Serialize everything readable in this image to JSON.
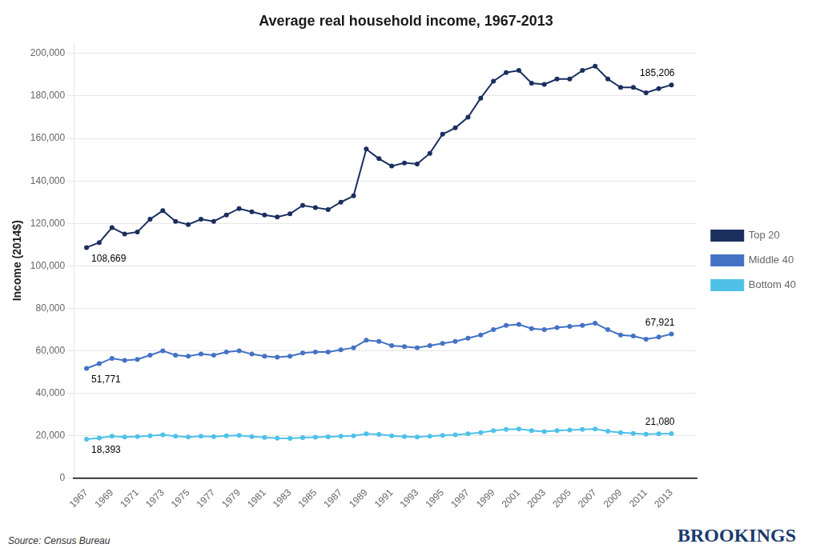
{
  "chart_data": {
    "type": "line",
    "title": "Average real household income, 1967-2013",
    "y_label": "Income (2014$)",
    "x": [
      1967,
      1968,
      1969,
      1970,
      1971,
      1972,
      1973,
      1974,
      1975,
      1976,
      1977,
      1978,
      1979,
      1980,
      1981,
      1982,
      1983,
      1984,
      1985,
      1986,
      1987,
      1988,
      1989,
      1990,
      1991,
      1992,
      1993,
      1994,
      1995,
      1996,
      1997,
      1998,
      1999,
      2000,
      2001,
      2002,
      2003,
      2004,
      2005,
      2006,
      2007,
      2008,
      2009,
      2010,
      2011,
      2012,
      2013
    ],
    "series": [
      {
        "name": "Top 20",
        "color": "#1a2f5e",
        "values": [
          108669,
          111000,
          118000,
          115000,
          116000,
          122000,
          126000,
          121000,
          119500,
          122000,
          121000,
          124000,
          127000,
          125500,
          124000,
          123000,
          124500,
          128500,
          127500,
          126500,
          130000,
          133000,
          155000,
          150500,
          147000,
          148500,
          148000,
          153000,
          162000,
          165000,
          170000,
          179000,
          187000,
          191000,
          192000,
          186000,
          185500,
          188000,
          188000,
          192000,
          194000,
          188000,
          184000,
          184000,
          181500,
          183500,
          185206
        ]
      },
      {
        "name": "Middle 40",
        "color": "#4472c4",
        "values": [
          51771,
          54000,
          56500,
          55500,
          56000,
          58000,
          60000,
          58000,
          57500,
          58500,
          58000,
          59500,
          60000,
          58500,
          57500,
          57000,
          57500,
          59000,
          59500,
          59500,
          60500,
          61500,
          65000,
          64500,
          62500,
          62000,
          61500,
          62500,
          63500,
          64500,
          66000,
          67500,
          70000,
          72000,
          72500,
          70500,
          70000,
          71000,
          71500,
          72000,
          73000,
          70000,
          67500,
          67000,
          65500,
          66500,
          67921
        ]
      },
      {
        "name": "Bottom 40",
        "color": "#4fc1e9",
        "values": [
          18393,
          19000,
          19800,
          19500,
          19700,
          20000,
          20500,
          19800,
          19500,
          19800,
          19700,
          20000,
          20200,
          19700,
          19300,
          18900,
          18800,
          19200,
          19400,
          19600,
          19800,
          20000,
          21000,
          20700,
          20000,
          19700,
          19500,
          19800,
          20200,
          20500,
          21000,
          21500,
          22500,
          23000,
          23200,
          22500,
          22000,
          22500,
          22800,
          23000,
          23200,
          22200,
          21500,
          21200,
          20800,
          21000,
          21080
        ]
      }
    ],
    "xlim": [
      1966,
      2015
    ],
    "xticks": [
      1967,
      1969,
      1971,
      1973,
      1975,
      1977,
      1979,
      1981,
      1983,
      1985,
      1987,
      1989,
      1991,
      1993,
      1995,
      1997,
      1999,
      2001,
      2003,
      2005,
      2007,
      2009,
      2011,
      2013
    ],
    "ylim": [
      0,
      205000
    ],
    "yticks": [
      0,
      {
        "value": 20000,
        "label": "20,000"
      },
      {
        "value": 40000,
        "label": "40,000"
      },
      {
        "value": 60000,
        "label": "60,000"
      },
      {
        "value": 80000,
        "label": "80,000"
      },
      {
        "value": 100000,
        "label": "100,000"
      },
      {
        "value": 120000,
        "label": "120,000"
      },
      {
        "value": 140000,
        "label": "140,000"
      },
      {
        "value": 160000,
        "label": "160,000"
      },
      {
        "value": 180000,
        "label": "180,000"
      },
      {
        "value": 200000,
        "label": "200,000"
      }
    ],
    "grid": true,
    "legend": "right",
    "marker": "circle",
    "annotations": [
      {
        "text": "108,669",
        "x": 1967,
        "y": 108669
      },
      {
        "text": "185,206",
        "x": 2013,
        "y": 185206
      },
      {
        "text": "51,771",
        "x": 1967,
        "y": 51771
      },
      {
        "text": "67,921",
        "x": 2013,
        "y": 67921
      },
      {
        "text": "18,393",
        "x": 1967,
        "y": 18393
      },
      {
        "text": "21,080",
        "x": 2013,
        "y": 21080
      },
      {
        "text": "Source: Census Bureau"
      },
      {
        "text": "BROOKINGS"
      }
    ]
  }
}
